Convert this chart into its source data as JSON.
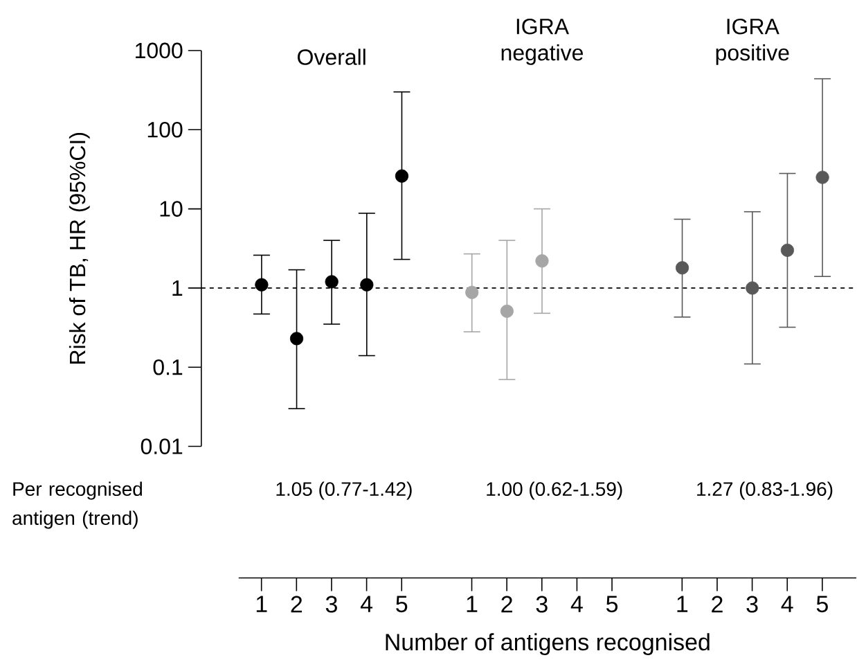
{
  "chart_data": {
    "type": "scatter",
    "ylabel": "Risk of TB, HR (95%CI)",
    "xlabel": "Number of antigens recognised",
    "categories": [
      "1",
      "2",
      "3",
      "4",
      "5",
      null,
      "1",
      "2",
      "3",
      "4",
      "5",
      null,
      "1",
      "2",
      "3",
      "4",
      "5"
    ],
    "log": true,
    "ylim": [
      0.01,
      1000
    ],
    "yticks": [
      0.01,
      0.1,
      1,
      10,
      100,
      1000
    ],
    "marker": "circle",
    "series": [
      {
        "color": "#000000",
        "values": [
          1.1,
          0.23,
          1.2,
          1.1,
          26,
          null,
          null,
          null,
          null,
          null,
          null,
          null,
          null,
          null,
          null,
          null,
          null
        ],
        "errors": [
          [
            0.47,
            2.6
          ],
          [
            0.03,
            1.7
          ],
          [
            0.35,
            4
          ],
          [
            0.14,
            8.8
          ],
          [
            2.3,
            300
          ],
          null,
          null,
          null,
          null,
          null,
          null,
          null,
          null,
          null,
          null,
          null,
          null
        ]
      },
      {
        "color": "#a6a6a6",
        "values": [
          null,
          null,
          null,
          null,
          null,
          null,
          0.88,
          0.51,
          2.2,
          null,
          null,
          null,
          null,
          null,
          null,
          null,
          null
        ],
        "errors": [
          null,
          null,
          null,
          null,
          null,
          null,
          [
            0.28,
            2.7
          ],
          [
            0.07,
            4
          ],
          [
            0.48,
            10
          ],
          null,
          null,
          null,
          null,
          null,
          null,
          null,
          null
        ]
      },
      {
        "color": "#595959",
        "values": [
          null,
          null,
          null,
          null,
          null,
          null,
          null,
          null,
          null,
          null,
          null,
          null,
          1.8,
          null,
          1.0,
          3.0,
          25
        ],
        "errors": [
          null,
          null,
          null,
          null,
          null,
          null,
          null,
          null,
          null,
          null,
          null,
          null,
          [
            0.43,
            7.4
          ],
          null,
          [
            0.11,
            9.2
          ],
          [
            0.32,
            28
          ],
          [
            1.4,
            440
          ]
        ]
      }
    ],
    "ref_lines": [
      {
        "axis": "y",
        "value": 1,
        "line_style": "dashed",
        "color": "#000000"
      }
    ],
    "annotations": [
      "Overall",
      "IGRA negative",
      "IGRA positive",
      "Per recognised antigen (trend)",
      "1.05 (0.77-1.42)",
      "1.00 (0.62-1.59)",
      "1.27 (0.83-1.96)"
    ]
  }
}
